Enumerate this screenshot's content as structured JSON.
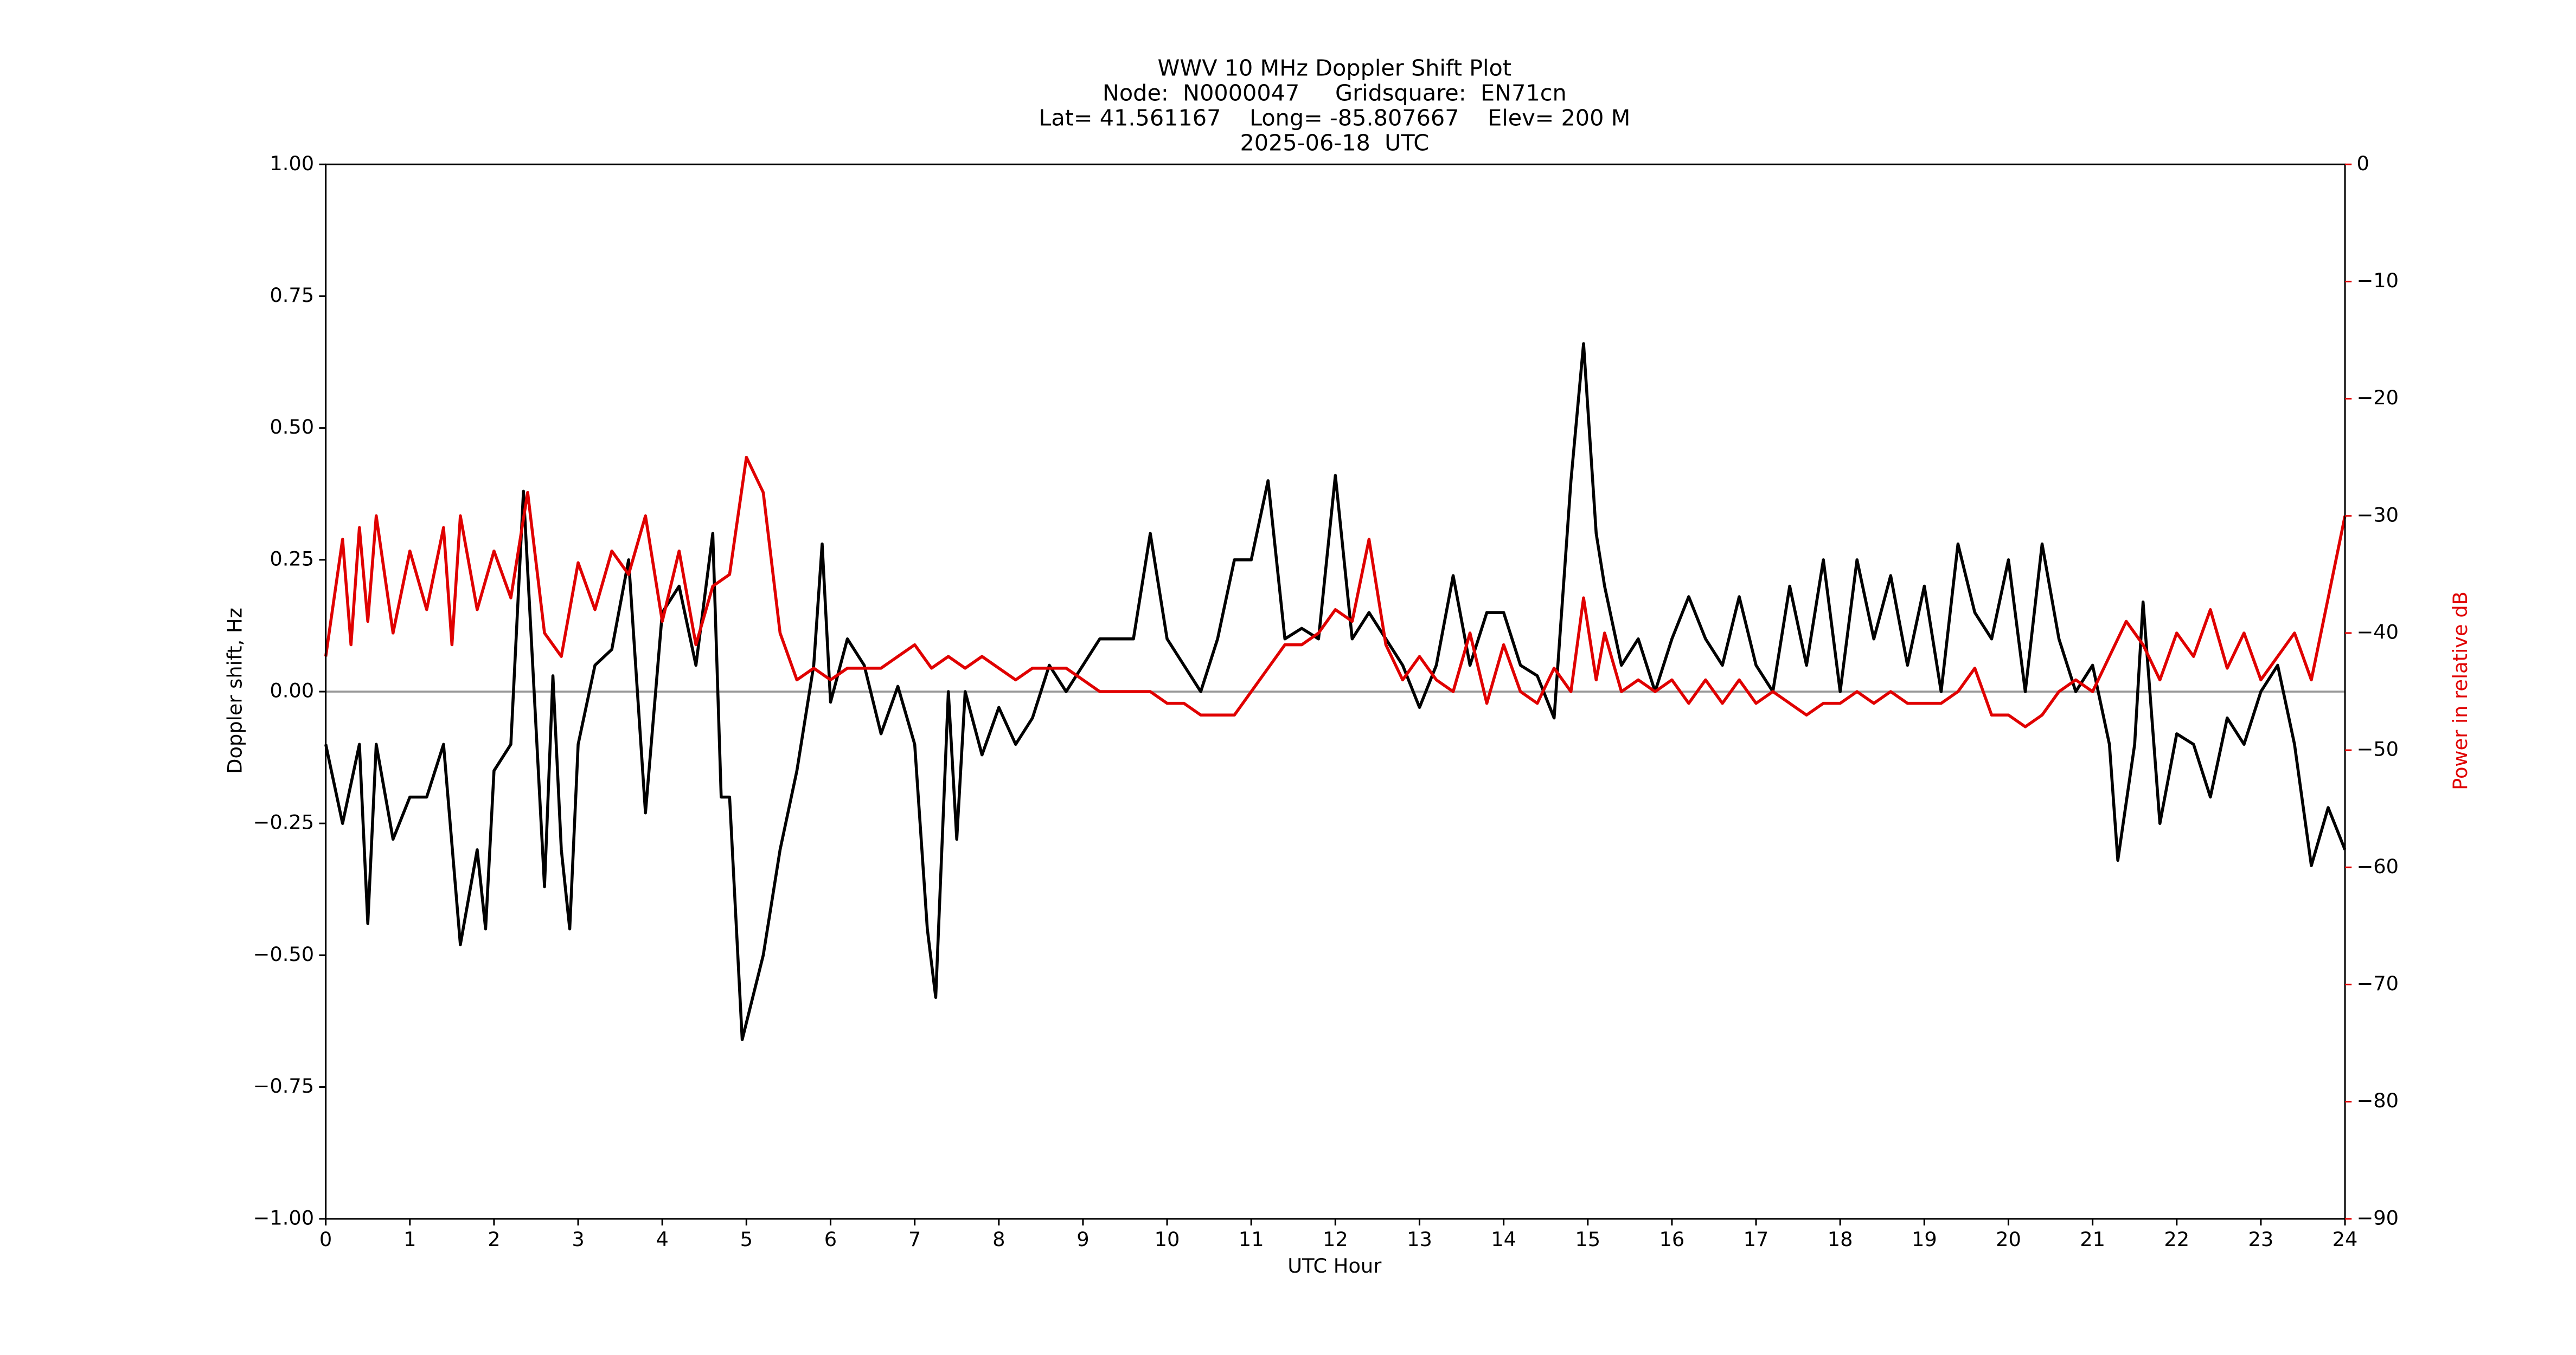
{
  "chart_data": {
    "type": "line",
    "title": [
      "WWV 10 MHz Doppler Shift Plot",
      "Node:  N0000047     Gridsquare:  EN71cn",
      "Lat= 41.561167    Long= -85.807667    Elev= 200 M",
      "2025-06-18  UTC"
    ],
    "xlabel": "UTC Hour",
    "ylabel": "Doppler shift, Hz",
    "y2label": "Power in relative dB",
    "xlim": [
      0,
      24
    ],
    "xticks": [
      0,
      1,
      2,
      3,
      4,
      5,
      6,
      7,
      8,
      9,
      10,
      11,
      12,
      13,
      14,
      15,
      16,
      17,
      18,
      19,
      20,
      21,
      22,
      23,
      24
    ],
    "ylim": [
      -1,
      1
    ],
    "yticks": [
      {
        "value": -1,
        "label": "−1.00"
      },
      {
        "value": -0.75,
        "label": "−0.75"
      },
      {
        "value": -0.5,
        "label": "−0.50"
      },
      {
        "value": -0.25,
        "label": "−0.25"
      },
      {
        "value": 0,
        "label": "0.00"
      },
      {
        "value": 0.25,
        "label": "0.25"
      },
      {
        "value": 0.5,
        "label": "0.50"
      },
      {
        "value": 0.75,
        "label": "0.75"
      },
      {
        "value": 1,
        "label": "1.00"
      }
    ],
    "y2lim": [
      -90,
      0
    ],
    "y2ticks": [
      {
        "value": -90,
        "label": "−90"
      },
      {
        "value": -80,
        "label": "−80"
      },
      {
        "value": -70,
        "label": "−70"
      },
      {
        "value": -60,
        "label": "−60"
      },
      {
        "value": -50,
        "label": "−50"
      },
      {
        "value": -40,
        "label": "−40"
      },
      {
        "value": -30,
        "label": "−30"
      },
      {
        "value": -20,
        "label": "−20"
      },
      {
        "value": -10,
        "label": "−10"
      },
      0
    ],
    "y2color": "#e00000",
    "zero_line": true,
    "series": [
      {
        "color": "#000000",
        "axis": "y",
        "x": [
          0,
          0.2,
          0.4,
          0.5,
          0.6,
          0.8,
          1.0,
          1.2,
          1.4,
          1.6,
          1.8,
          1.9,
          2.0,
          2.2,
          2.35,
          2.6,
          2.7,
          2.8,
          2.9,
          3.0,
          3.2,
          3.4,
          3.6,
          3.8,
          4.0,
          4.2,
          4.4,
          4.6,
          4.7,
          4.8,
          4.95,
          5.2,
          5.4,
          5.6,
          5.8,
          5.9,
          6.0,
          6.2,
          6.4,
          6.6,
          6.8,
          7.0,
          7.15,
          7.25,
          7.4,
          7.5,
          7.6,
          7.8,
          8.0,
          8.2,
          8.4,
          8.6,
          8.8,
          9.0,
          9.2,
          9.4,
          9.6,
          9.8,
          10.0,
          10.2,
          10.4,
          10.6,
          10.8,
          11.0,
          11.2,
          11.4,
          11.6,
          11.8,
          12.0,
          12.2,
          12.4,
          12.6,
          12.8,
          13.0,
          13.2,
          13.4,
          13.6,
          13.8,
          14.0,
          14.2,
          14.4,
          14.6,
          14.8,
          14.95,
          15.1,
          15.2,
          15.4,
          15.6,
          15.8,
          16.0,
          16.2,
          16.4,
          16.6,
          16.8,
          17.0,
          17.2,
          17.4,
          17.6,
          17.8,
          18.0,
          18.2,
          18.4,
          18.6,
          18.8,
          19.0,
          19.2,
          19.4,
          19.6,
          19.8,
          20.0,
          20.2,
          20.4,
          20.6,
          20.8,
          21.0,
          21.2,
          21.3,
          21.5,
          21.6,
          21.8,
          22.0,
          22.2,
          22.4,
          22.6,
          22.8,
          23.0,
          23.2,
          23.4,
          23.6,
          23.8,
          24.0
        ],
        "values": [
          -0.1,
          -0.25,
          -0.1,
          -0.44,
          -0.1,
          -0.28,
          -0.2,
          -0.2,
          -0.1,
          -0.48,
          -0.3,
          -0.45,
          -0.15,
          -0.1,
          0.38,
          -0.37,
          0.03,
          -0.3,
          -0.45,
          -0.1,
          0.05,
          0.08,
          0.25,
          -0.23,
          0.15,
          0.2,
          0.05,
          0.3,
          -0.2,
          -0.2,
          -0.66,
          -0.5,
          -0.3,
          -0.15,
          0.05,
          0.28,
          -0.02,
          0.1,
          0.05,
          -0.08,
          0.01,
          -0.1,
          -0.45,
          -0.58,
          0.0,
          -0.28,
          0.0,
          -0.12,
          -0.03,
          -0.1,
          -0.05,
          0.05,
          0.0,
          0.05,
          0.1,
          0.1,
          0.1,
          0.3,
          0.1,
          0.05,
          0.0,
          0.1,
          0.25,
          0.25,
          0.4,
          0.1,
          0.12,
          0.1,
          0.41,
          0.1,
          0.15,
          0.1,
          0.05,
          -0.03,
          0.05,
          0.22,
          0.05,
          0.15,
          0.15,
          0.05,
          0.03,
          -0.05,
          0.4,
          0.66,
          0.3,
          0.2,
          0.05,
          0.1,
          0.0,
          0.1,
          0.18,
          0.1,
          0.05,
          0.18,
          0.05,
          0.0,
          0.2,
          0.05,
          0.25,
          0.0,
          0.25,
          0.1,
          0.22,
          0.05,
          0.2,
          0.0,
          0.28,
          0.15,
          0.1,
          0.25,
          0.0,
          0.28,
          0.1,
          0.0,
          0.05,
          -0.1,
          -0.32,
          -0.1,
          0.17,
          -0.25,
          -0.08,
          -0.1,
          -0.2,
          -0.05,
          -0.1,
          0.0,
          0.05,
          -0.1,
          -0.33,
          -0.22,
          -0.3
        ]
      },
      {
        "color": "#e00000",
        "axis": "y2",
        "x": [
          0,
          0.2,
          0.3,
          0.4,
          0.5,
          0.6,
          0.8,
          1.0,
          1.2,
          1.4,
          1.5,
          1.6,
          1.8,
          2.0,
          2.2,
          2.4,
          2.6,
          2.8,
          3.0,
          3.2,
          3.4,
          3.6,
          3.8,
          4.0,
          4.2,
          4.4,
          4.6,
          4.8,
          5.0,
          5.2,
          5.4,
          5.6,
          5.8,
          6.0,
          6.2,
          6.4,
          6.6,
          6.8,
          7.0,
          7.2,
          7.4,
          7.6,
          7.8,
          8.0,
          8.2,
          8.4,
          8.6,
          8.8,
          9.0,
          9.2,
          9.4,
          9.6,
          9.8,
          10.0,
          10.2,
          10.4,
          10.6,
          10.8,
          11.0,
          11.2,
          11.4,
          11.6,
          11.8,
          12.0,
          12.2,
          12.4,
          12.6,
          12.8,
          13.0,
          13.2,
          13.4,
          13.6,
          13.8,
          14.0,
          14.2,
          14.4,
          14.6,
          14.8,
          14.95,
          15.1,
          15.2,
          15.4,
          15.6,
          15.8,
          16.0,
          16.2,
          16.4,
          16.6,
          16.8,
          17.0,
          17.2,
          17.4,
          17.6,
          17.8,
          18.0,
          18.2,
          18.4,
          18.6,
          18.8,
          19.0,
          19.2,
          19.4,
          19.6,
          19.8,
          20.0,
          20.2,
          20.4,
          20.6,
          20.8,
          21.0,
          21.2,
          21.4,
          21.6,
          21.8,
          22.0,
          22.2,
          22.4,
          22.6,
          22.8,
          23.0,
          23.2,
          23.4,
          23.6,
          23.8,
          24.0
        ],
        "values": [
          -42,
          -32,
          -41,
          -31,
          -39,
          -30,
          -40,
          -33,
          -38,
          -31,
          -41,
          -30,
          -38,
          -33,
          -37,
          -28,
          -40,
          -42,
          -34,
          -38,
          -33,
          -35,
          -30,
          -39,
          -33,
          -41,
          -36,
          -35,
          -25,
          -28,
          -40,
          -44,
          -43,
          -44,
          -43,
          -43,
          -43,
          -42,
          -41,
          -43,
          -42,
          -43,
          -42,
          -43,
          -44,
          -43,
          -43,
          -43,
          -44,
          -45,
          -45,
          -45,
          -45,
          -46,
          -46,
          -47,
          -47,
          -47,
          -45,
          -43,
          -41,
          -41,
          -40,
          -38,
          -39,
          -32,
          -41,
          -44,
          -42,
          -44,
          -45,
          -40,
          -46,
          -41,
          -45,
          -46,
          -43,
          -45,
          -37,
          -44,
          -40,
          -45,
          -44,
          -45,
          -44,
          -46,
          -44,
          -46,
          -44,
          -46,
          -45,
          -46,
          -47,
          -46,
          -46,
          -45,
          -46,
          -45,
          -46,
          -46,
          -46,
          -45,
          -43,
          -47,
          -47,
          -48,
          -47,
          -45,
          -44,
          -45,
          -42,
          -39,
          -41,
          -44,
          -40,
          -42,
          -38,
          -43,
          -40,
          -44,
          -42,
          -40,
          -44,
          -37,
          -30
        ]
      }
    ]
  }
}
